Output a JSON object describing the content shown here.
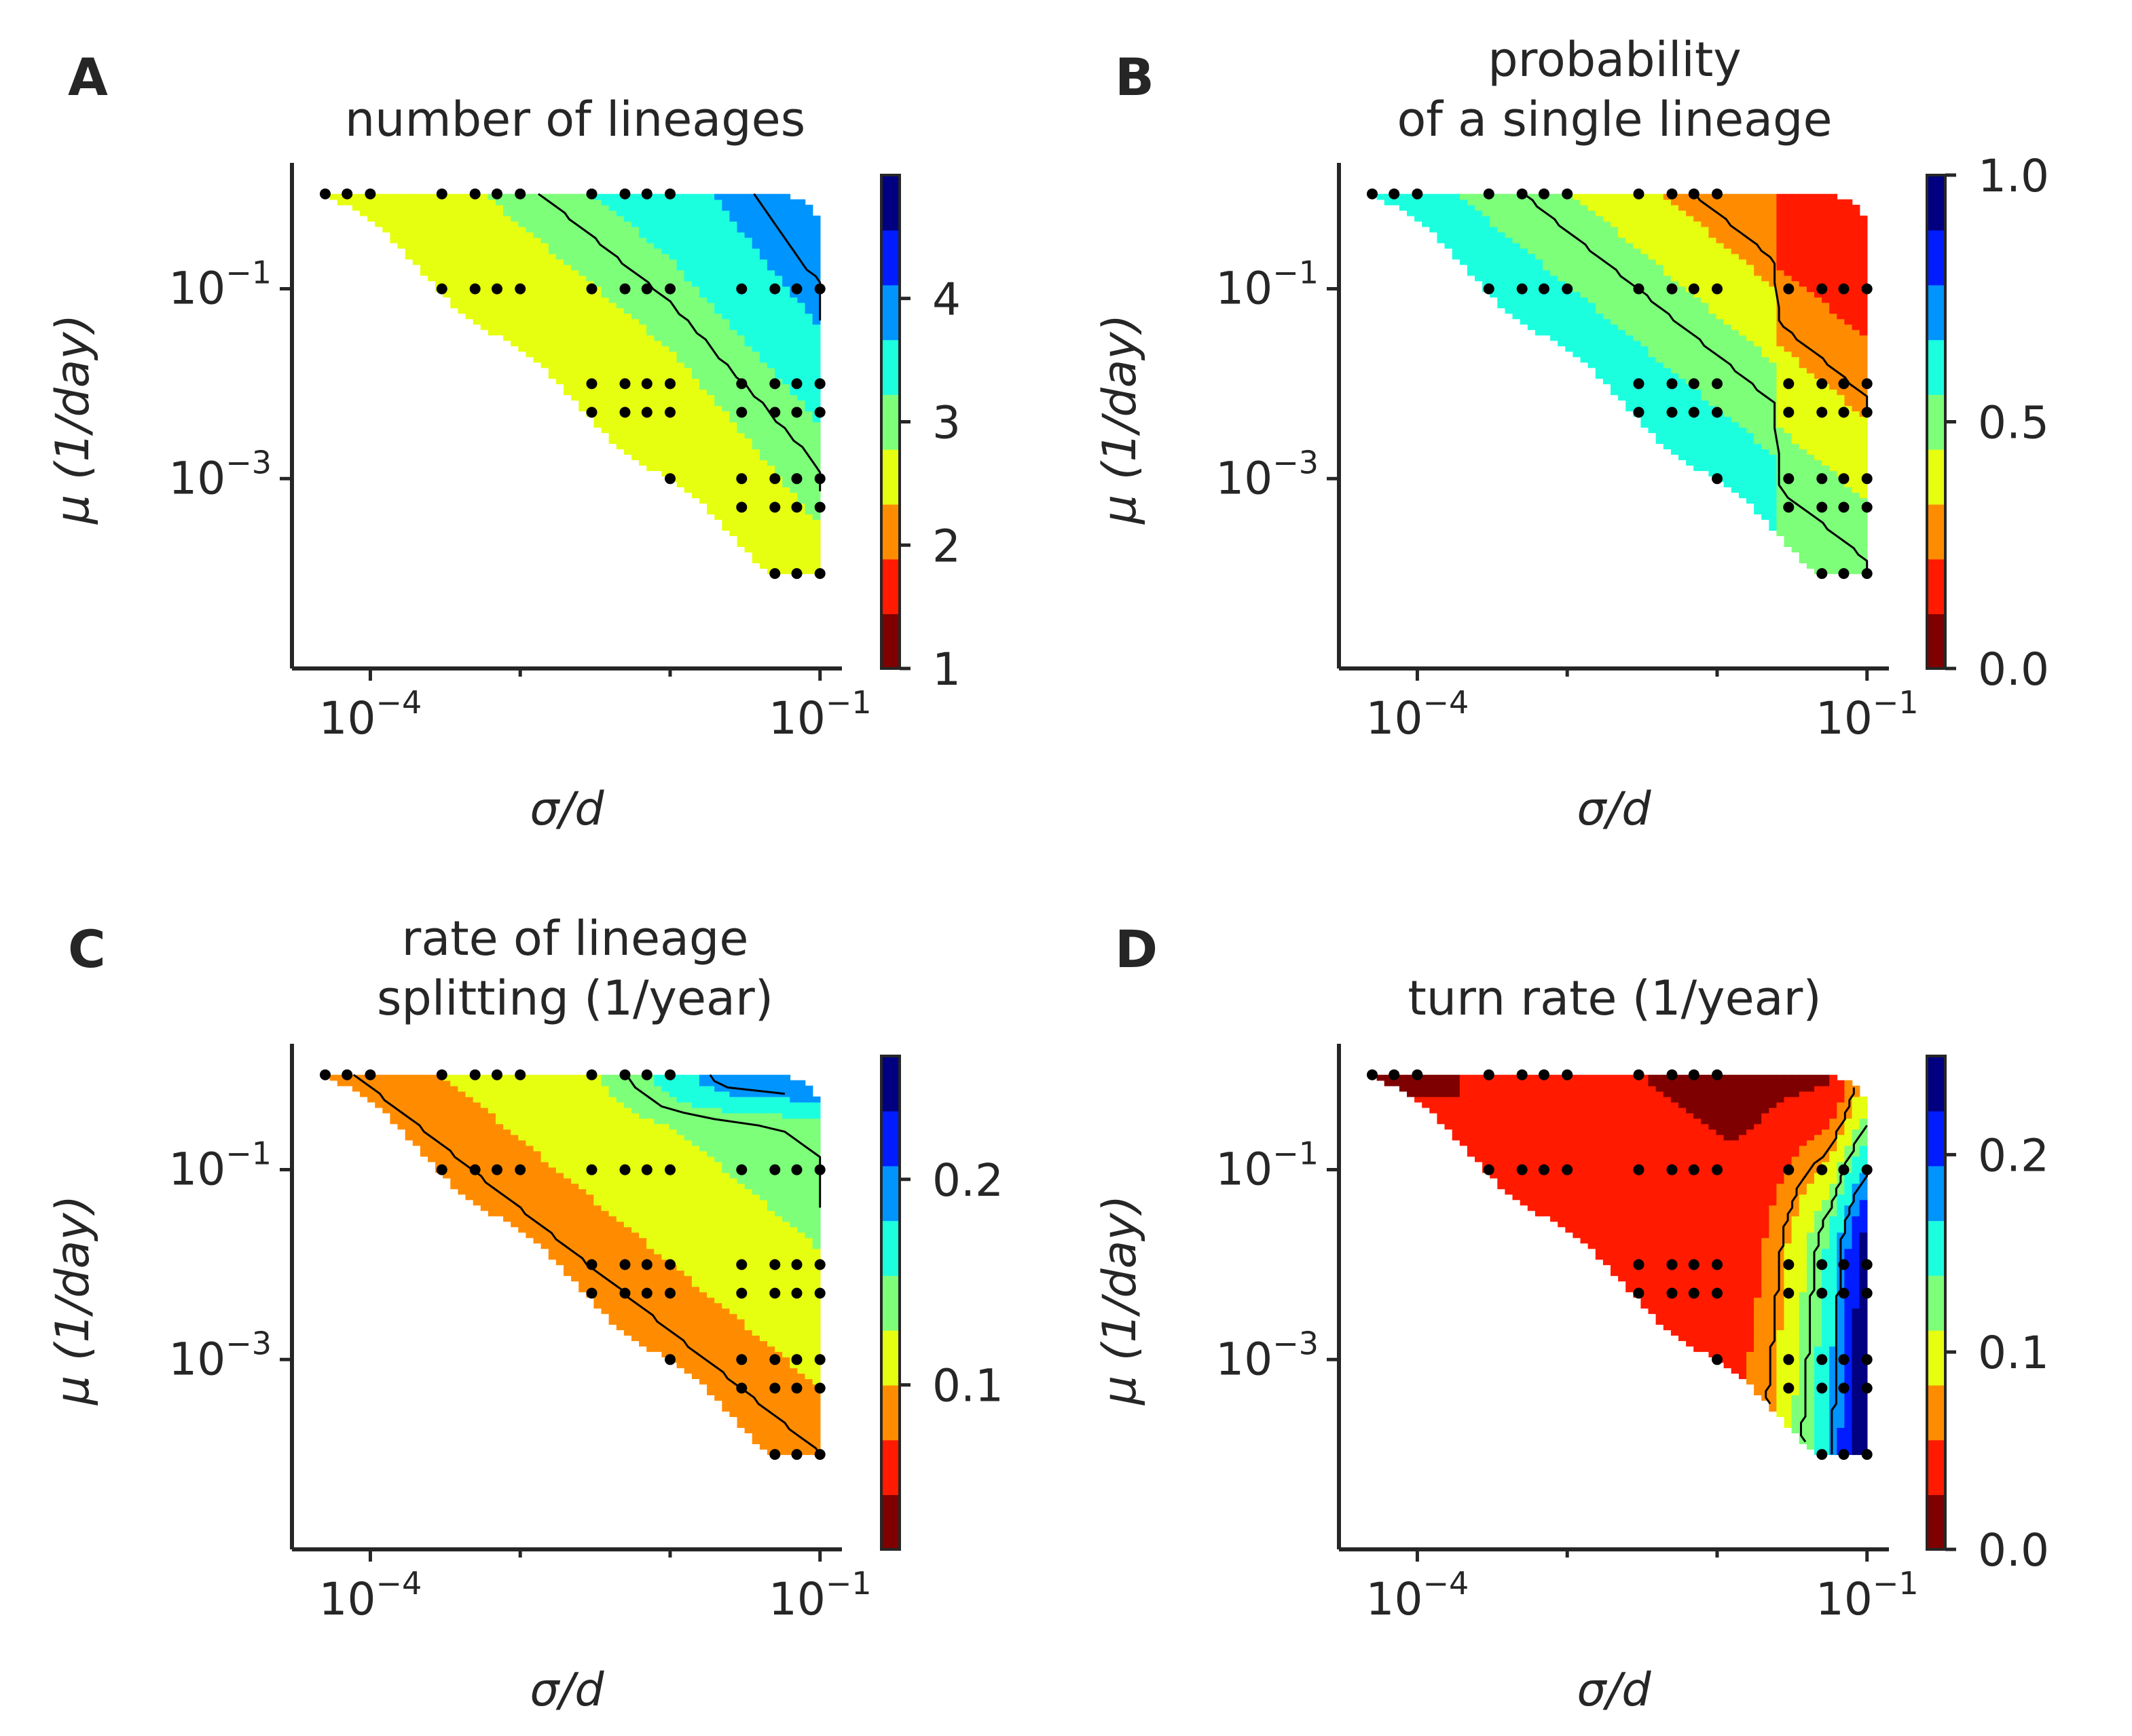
{
  "figure": {
    "colors": {
      "jet_10": [
        "#7f0000",
        "#ff1a00",
        "#ff8c00",
        "#e6ff11",
        "#7dff7a",
        "#1cffdf",
        "#0094ff",
        "#001cff",
        "#000080"
      ],
      "dot": "#000000",
      "contour": "#000000",
      "text": "#262626"
    }
  },
  "chart_data": [
    {
      "panel": "A",
      "type": "heatmap",
      "title_lines": [
        "number of lineages"
      ],
      "xlabel": "σ/d",
      "ylabel": "μ (1/day)",
      "x_scale": "log",
      "y_scale": "log",
      "xlim": [
        3e-05,
        0.14
      ],
      "ylim": [
        1e-05,
        1.8
      ],
      "x_ticks": [
        {
          "value": 0.0001,
          "base": "10",
          "exp": "−4"
        },
        {
          "value": 0.1,
          "base": "10",
          "exp": "−1"
        }
      ],
      "y_ticks": [
        {
          "value": 0.001,
          "base": "10",
          "exp": "−3"
        },
        {
          "value": 0.1,
          "base": "10",
          "exp": "−1"
        }
      ],
      "colorbar": {
        "range": [
          1,
          5
        ],
        "levels": 9,
        "ticks": [
          "1",
          "2",
          "3",
          "4"
        ],
        "tick_values": [
          1,
          2,
          3,
          4
        ]
      },
      "field": {
        "metric": "lineages",
        "x_max": 0.1,
        "y_max": 1.0
      },
      "sample_points_x": [
        5e-05,
        7e-05,
        0.0001,
        0.0003,
        0.0005,
        0.0007,
        0.001,
        0.003,
        0.005,
        0.007,
        0.01,
        0.03,
        0.05,
        0.07,
        0.1
      ],
      "sample_points_y": [
        1,
        0.1,
        0.01,
        0.005,
        0.001,
        0.0005,
        0.0001
      ]
    },
    {
      "panel": "B",
      "type": "heatmap",
      "title_lines": [
        "probability",
        "of a single lineage"
      ],
      "xlabel": "σ/d",
      "ylabel": "μ (1/day)",
      "x_scale": "log",
      "y_scale": "log",
      "xlim": [
        3e-05,
        0.14
      ],
      "ylim": [
        1e-05,
        1.8
      ],
      "x_ticks": [
        {
          "value": 0.0001,
          "base": "10",
          "exp": "−4"
        },
        {
          "value": 0.1,
          "base": "10",
          "exp": "−1"
        }
      ],
      "y_ticks": [
        {
          "value": 0.001,
          "base": "10",
          "exp": "−3"
        },
        {
          "value": 0.1,
          "base": "10",
          "exp": "−1"
        }
      ],
      "colorbar": {
        "range": [
          0,
          1
        ],
        "levels": 9,
        "ticks": [
          "0.0",
          "0.5",
          "1.0"
        ],
        "tick_values": [
          0,
          0.5,
          1.0
        ]
      },
      "field": {
        "metric": "single",
        "x_max": 0.1,
        "y_max": 1.0
      }
    },
    {
      "panel": "C",
      "type": "heatmap",
      "title_lines": [
        "rate of lineage",
        "splitting (1/year)"
      ],
      "xlabel": "σ/d",
      "ylabel": "μ (1/day)",
      "x_scale": "log",
      "y_scale": "log",
      "xlim": [
        3e-05,
        0.14
      ],
      "ylim": [
        1e-05,
        1.8
      ],
      "x_ticks": [
        {
          "value": 0.0001,
          "base": "10",
          "exp": "−4"
        },
        {
          "value": 0.1,
          "base": "10",
          "exp": "−1"
        }
      ],
      "y_ticks": [
        {
          "value": 0.001,
          "base": "10",
          "exp": "−3"
        },
        {
          "value": 0.1,
          "base": "10",
          "exp": "−1"
        }
      ],
      "colorbar": {
        "range": [
          0.02,
          0.26
        ],
        "levels": 9,
        "ticks": [
          "0.1",
          "0.2"
        ],
        "tick_values": [
          0.1,
          0.2
        ]
      },
      "field": {
        "metric": "splitting",
        "x_max": 0.1,
        "y_max": 1.0
      }
    },
    {
      "panel": "D",
      "type": "heatmap",
      "title_lines": [
        "turn   rate (1/year)"
      ],
      "xlabel": "σ/d",
      "ylabel": "μ (1/day)",
      "x_scale": "log",
      "y_scale": "log",
      "xlim": [
        3e-05,
        0.14
      ],
      "ylim": [
        1e-05,
        1.8
      ],
      "x_ticks": [
        {
          "value": 0.0001,
          "base": "10",
          "exp": "−4"
        },
        {
          "value": 0.1,
          "base": "10",
          "exp": "−1"
        }
      ],
      "y_ticks": [
        {
          "value": 0.001,
          "base": "10",
          "exp": "−3"
        },
        {
          "value": 0.1,
          "base": "10",
          "exp": "−1"
        }
      ],
      "colorbar": {
        "range": [
          0,
          0.25
        ],
        "levels": 9,
        "ticks": [
          "0.0",
          "0.1",
          "0.2"
        ],
        "tick_values": [
          0,
          0.1,
          0.2
        ]
      },
      "field": {
        "metric": "turnover",
        "x_max": 0.1,
        "y_max": 1.0
      }
    }
  ]
}
